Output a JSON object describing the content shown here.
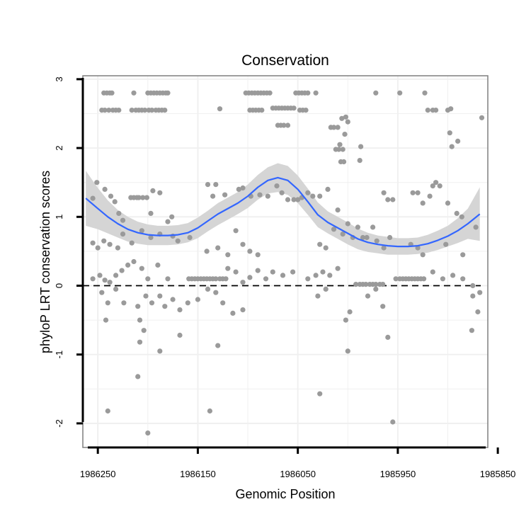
{
  "chart_data": {
    "type": "scatter",
    "title": "Conservation",
    "xlabel": "Genomic Position",
    "ylabel": "phyloP LRT conservation scores",
    "xlim": [
      1986265,
      1985860
    ],
    "ylim": [
      -2.35,
      3.05
    ],
    "x_reversed": true,
    "grid": true,
    "x_ticks": [
      1986250,
      1986150,
      1986050,
      1985950,
      1985850
    ],
    "x_tick_labels": [
      "1986250",
      "1986150",
      "1986050",
      "1985950",
      "1985850"
    ],
    "y_ticks": [
      -2,
      -1,
      0,
      1,
      2,
      3
    ],
    "y_tick_labels": [
      "-2",
      "-1",
      "0",
      "1",
      "2",
      "3"
    ],
    "reference_line": {
      "y": 0,
      "style": "dashed"
    },
    "colors": {
      "points": "#9a9a9a",
      "smooth": "#3366ff",
      "band": "#d5d5d5",
      "frame": "#7f7f7f",
      "grid": "#f0f0f0"
    },
    "points": [
      [
        1986244,
        2.8
      ],
      [
        1986241,
        2.8
      ],
      [
        1986238,
        2.8
      ],
      [
        1986236,
        2.8
      ],
      [
        1986246,
        2.55
      ],
      [
        1986243,
        2.55
      ],
      [
        1986239,
        2.55
      ],
      [
        1986235,
        2.55
      ],
      [
        1986232,
        2.55
      ],
      [
        1986229,
        2.55
      ],
      [
        1986214,
        2.8
      ],
      [
        1986200,
        2.8
      ],
      [
        1986197,
        2.8
      ],
      [
        1986194,
        2.8
      ],
      [
        1986191,
        2.8
      ],
      [
        1986188,
        2.8
      ],
      [
        1986185,
        2.8
      ],
      [
        1986182,
        2.8
      ],
      [
        1986180,
        2.8
      ],
      [
        1986216,
        2.55
      ],
      [
        1986212,
        2.55
      ],
      [
        1986209,
        2.55
      ],
      [
        1986206,
        2.55
      ],
      [
        1986203,
        2.55
      ],
      [
        1986199,
        2.55
      ],
      [
        1986196,
        2.55
      ],
      [
        1986192,
        2.55
      ],
      [
        1986189,
        2.55
      ],
      [
        1986186,
        2.55
      ],
      [
        1986183,
        2.55
      ],
      [
        1986102,
        2.8
      ],
      [
        1986099,
        2.8
      ],
      [
        1986096,
        2.8
      ],
      [
        1986093,
        2.8
      ],
      [
        1986090,
        2.8
      ],
      [
        1986087,
        2.8
      ],
      [
        1986084,
        2.8
      ],
      [
        1986081,
        2.8
      ],
      [
        1986078,
        2.8
      ],
      [
        1986098,
        2.55
      ],
      [
        1986095,
        2.55
      ],
      [
        1986092,
        2.55
      ],
      [
        1986089,
        2.55
      ],
      [
        1986086,
        2.55
      ],
      [
        1986075,
        2.58
      ],
      [
        1986072,
        2.58
      ],
      [
        1986069,
        2.58
      ],
      [
        1986066,
        2.58
      ],
      [
        1986063,
        2.58
      ],
      [
        1986060,
        2.58
      ],
      [
        1986057,
        2.58
      ],
      [
        1986054,
        2.58
      ],
      [
        1986070,
        2.33
      ],
      [
        1986067,
        2.33
      ],
      [
        1986064,
        2.33
      ],
      [
        1986060,
        2.33
      ],
      [
        1986052,
        2.8
      ],
      [
        1986049,
        2.8
      ],
      [
        1986046,
        2.8
      ],
      [
        1986043,
        2.8
      ],
      [
        1986040,
        2.8
      ],
      [
        1986032,
        2.8
      ],
      [
        1986048,
        2.55
      ],
      [
        1986045,
        2.55
      ],
      [
        1986042,
        2.55
      ],
      [
        1986128,
        2.57
      ],
      [
        1986017,
        2.3
      ],
      [
        1986014,
        2.3
      ],
      [
        1986010,
        2.3
      ],
      [
        1986006,
        2.43
      ],
      [
        1986002,
        2.45
      ],
      [
        1986000,
        2.38
      ],
      [
        1986003,
        2.2
      ],
      [
        1986008,
        2.05
      ],
      [
        1986012,
        1.98
      ],
      [
        1986009,
        1.98
      ],
      [
        1986005,
        1.98
      ],
      [
        1986007,
        1.8
      ],
      [
        1986004,
        1.8
      ],
      [
        1985972,
        2.8
      ],
      [
        1985948,
        2.8
      ],
      [
        1985923,
        2.8
      ],
      [
        1985915,
        2.55
      ],
      [
        1985912,
        2.55
      ],
      [
        1985920,
        2.55
      ],
      [
        1985900,
        2.55
      ],
      [
        1985897,
        2.57
      ],
      [
        1985898,
        2.22
      ],
      [
        1985896,
        2.02
      ],
      [
        1985890,
        2.1
      ],
      [
        1985866,
        2.44
      ],
      [
        1985987,
        2.02
      ],
      [
        1985988,
        1.82
      ],
      [
        1986255,
        1.27
      ],
      [
        1986251,
        1.5
      ],
      [
        1986243,
        1.4
      ],
      [
        1986237,
        1.3
      ],
      [
        1986233,
        1.22
      ],
      [
        1986229,
        1.05
      ],
      [
        1986225,
        0.95
      ],
      [
        1986217,
        1.28
      ],
      [
        1986214,
        1.28
      ],
      [
        1986211,
        1.28
      ],
      [
        1986209,
        1.28
      ],
      [
        1986205,
        1.28
      ],
      [
        1986201,
        1.28
      ],
      [
        1986197,
        1.05
      ],
      [
        1986195,
        1.38
      ],
      [
        1986188,
        1.35
      ],
      [
        1986180,
        0.93
      ],
      [
        1986176,
        1.0
      ],
      [
        1986140,
        1.47
      ],
      [
        1986135,
        1.3
      ],
      [
        1986132,
        1.47
      ],
      [
        1986123,
        1.32
      ],
      [
        1986109,
        1.4
      ],
      [
        1986105,
        1.42
      ],
      [
        1986097,
        1.3
      ],
      [
        1986088,
        1.32
      ],
      [
        1986080,
        1.3
      ],
      [
        1986071,
        1.45
      ],
      [
        1986066,
        1.35
      ],
      [
        1986060,
        1.25
      ],
      [
        1986054,
        1.25
      ],
      [
        1986050,
        1.25
      ],
      [
        1986046,
        1.28
      ],
      [
        1986040,
        1.35
      ],
      [
        1986035,
        1.3
      ],
      [
        1986028,
        1.3
      ],
      [
        1986020,
        1.4
      ],
      [
        1986010,
        1.1
      ],
      [
        1986000,
        0.9
      ],
      [
        1985990,
        0.85
      ],
      [
        1985981,
        0.7
      ],
      [
        1985971,
        0.65
      ],
      [
        1985964,
        1.35
      ],
      [
        1985960,
        1.25
      ],
      [
        1985955,
        1.25
      ],
      [
        1985935,
        1.35
      ],
      [
        1985930,
        1.35
      ],
      [
        1985925,
        1.2
      ],
      [
        1985918,
        1.3
      ],
      [
        1985915,
        1.45
      ],
      [
        1985912,
        1.5
      ],
      [
        1985908,
        1.45
      ],
      [
        1985900,
        1.2
      ],
      [
        1985891,
        1.05
      ],
      [
        1985886,
        1.0
      ],
      [
        1985872,
        0.85
      ],
      [
        1986255,
        0.62
      ],
      [
        1986250,
        0.55
      ],
      [
        1986244,
        0.65
      ],
      [
        1986238,
        0.6
      ],
      [
        1986230,
        0.55
      ],
      [
        1986225,
        0.75
      ],
      [
        1986216,
        0.62
      ],
      [
        1986206,
        0.8
      ],
      [
        1986197,
        0.7
      ],
      [
        1986188,
        0.75
      ],
      [
        1986175,
        0.72
      ],
      [
        1986170,
        0.65
      ],
      [
        1986158,
        0.7
      ],
      [
        1986141,
        0.5
      ],
      [
        1986130,
        0.55
      ],
      [
        1986120,
        0.45
      ],
      [
        1986112,
        0.8
      ],
      [
        1986105,
        0.6
      ],
      [
        1986098,
        0.5
      ],
      [
        1986090,
        0.45
      ],
      [
        1986028,
        0.6
      ],
      [
        1986022,
        0.55
      ],
      [
        1986014,
        0.82
      ],
      [
        1986005,
        0.75
      ],
      [
        1985995,
        0.7
      ],
      [
        1985985,
        0.7
      ],
      [
        1985975,
        0.85
      ],
      [
        1985964,
        0.55
      ],
      [
        1985958,
        0.7
      ],
      [
        1985937,
        0.6
      ],
      [
        1985930,
        0.55
      ],
      [
        1985925,
        0.45
      ],
      [
        1985902,
        0.6
      ],
      [
        1985885,
        0.45
      ],
      [
        1986255,
        0.1
      ],
      [
        1986248,
        0.15
      ],
      [
        1986243,
        0.08
      ],
      [
        1986238,
        0.05
      ],
      [
        1986232,
        0.15
      ],
      [
        1986226,
        0.22
      ],
      [
        1986220,
        0.3
      ],
      [
        1986214,
        0.35
      ],
      [
        1986206,
        0.25
      ],
      [
        1986200,
        0.1
      ],
      [
        1986190,
        0.3
      ],
      [
        1986180,
        0.1
      ],
      [
        1986159,
        0.1
      ],
      [
        1986156,
        0.1
      ],
      [
        1986153,
        0.1
      ],
      [
        1986150,
        0.1
      ],
      [
        1986147,
        0.1
      ],
      [
        1986144,
        0.1
      ],
      [
        1986141,
        0.1
      ],
      [
        1986138,
        0.1
      ],
      [
        1986135,
        0.1
      ],
      [
        1986132,
        0.1
      ],
      [
        1986128,
        0.1
      ],
      [
        1986125,
        0.1
      ],
      [
        1986122,
        0.1
      ],
      [
        1986120,
        0.25
      ],
      [
        1986112,
        0.2
      ],
      [
        1986105,
        0.05
      ],
      [
        1986098,
        0.12
      ],
      [
        1986090,
        0.22
      ],
      [
        1986082,
        0.1
      ],
      [
        1986075,
        0.2
      ],
      [
        1986065,
        0.15
      ],
      [
        1986055,
        0.2
      ],
      [
        1986040,
        0.1
      ],
      [
        1986032,
        0.15
      ],
      [
        1986025,
        0.2
      ],
      [
        1986018,
        0.15
      ],
      [
        1986010,
        0.25
      ],
      [
        1985992,
        0.02
      ],
      [
        1985988,
        0.02
      ],
      [
        1985985,
        0.02
      ],
      [
        1985982,
        0.02
      ],
      [
        1985978,
        0.02
      ],
      [
        1985975,
        0.02
      ],
      [
        1985972,
        0.02
      ],
      [
        1985968,
        0.02
      ],
      [
        1985965,
        0.02
      ],
      [
        1985952,
        0.1
      ],
      [
        1985948,
        0.1
      ],
      [
        1985945,
        0.1
      ],
      [
        1985942,
        0.1
      ],
      [
        1985939,
        0.1
      ],
      [
        1985936,
        0.1
      ],
      [
        1985933,
        0.1
      ],
      [
        1985930,
        0.1
      ],
      [
        1985927,
        0.1
      ],
      [
        1985924,
        0.1
      ],
      [
        1985915,
        0.2
      ],
      [
        1985905,
        0.1
      ],
      [
        1985895,
        0.15
      ],
      [
        1985885,
        0.1
      ],
      [
        1985875,
        0.0
      ],
      [
        1986246,
        -0.1
      ],
      [
        1986240,
        -0.25
      ],
      [
        1986232,
        -0.05
      ],
      [
        1986224,
        -0.25
      ],
      [
        1986210,
        -0.3
      ],
      [
        1986202,
        -0.15
      ],
      [
        1986196,
        -0.25
      ],
      [
        1986188,
        -0.15
      ],
      [
        1986183,
        -0.3
      ],
      [
        1986175,
        -0.2
      ],
      [
        1986168,
        -0.35
      ],
      [
        1986160,
        -0.25
      ],
      [
        1986150,
        -0.2
      ],
      [
        1986140,
        -0.05
      ],
      [
        1986132,
        -0.1
      ],
      [
        1986125,
        -0.25
      ],
      [
        1986115,
        -0.4
      ],
      [
        1986105,
        -0.35
      ],
      [
        1986030,
        -0.15
      ],
      [
        1986022,
        -0.05
      ],
      [
        1985998,
        -0.38
      ],
      [
        1985980,
        -0.15
      ],
      [
        1985972,
        -0.05
      ],
      [
        1985965,
        -0.3
      ],
      [
        1985875,
        -0.15
      ],
      [
        1985870,
        -0.38
      ],
      [
        1985868,
        -0.1
      ],
      [
        1986242,
        -0.5
      ],
      [
        1986208,
        -0.5
      ],
      [
        1986204,
        -0.65
      ],
      [
        1986188,
        -0.95
      ],
      [
        1986168,
        -0.72
      ],
      [
        1986208,
        -0.82
      ],
      [
        1986130,
        -0.87
      ],
      [
        1986002,
        -0.5
      ],
      [
        1986000,
        -0.95
      ],
      [
        1985960,
        -0.75
      ],
      [
        1985876,
        -0.65
      ],
      [
        1986210,
        -1.32
      ],
      [
        1986028,
        -1.57
      ],
      [
        1986240,
        -1.82
      ],
      [
        1986138,
        -1.82
      ],
      [
        1986200,
        -2.14
      ],
      [
        1985955,
        -1.98
      ]
    ],
    "smooth_line": {
      "x": [
        1986262,
        1986250,
        1986240,
        1986230,
        1986220,
        1986210,
        1986200,
        1986190,
        1986180,
        1986170,
        1986160,
        1986150,
        1986140,
        1986130,
        1986120,
        1986110,
        1986100,
        1986090,
        1986080,
        1986070,
        1986060,
        1986050,
        1986040,
        1986030,
        1986020,
        1986010,
        1986000,
        1985990,
        1985980,
        1985970,
        1985960,
        1985950,
        1985940,
        1985930,
        1985920,
        1985910,
        1985900,
        1985890,
        1985880,
        1985868
      ],
      "y": [
        1.27,
        1.12,
        1.0,
        0.9,
        0.82,
        0.77,
        0.74,
        0.73,
        0.73,
        0.74,
        0.77,
        0.84,
        0.94,
        1.04,
        1.12,
        1.2,
        1.3,
        1.43,
        1.53,
        1.57,
        1.53,
        1.4,
        1.22,
        1.03,
        0.92,
        0.84,
        0.76,
        0.68,
        0.63,
        0.6,
        0.58,
        0.57,
        0.57,
        0.58,
        0.61,
        0.66,
        0.72,
        0.8,
        0.9,
        1.04
      ]
    },
    "confidence_band": {
      "upper": [
        1.67,
        1.42,
        1.24,
        1.1,
        1.0,
        0.93,
        0.89,
        0.87,
        0.87,
        0.88,
        0.91,
        0.99,
        1.09,
        1.2,
        1.28,
        1.36,
        1.47,
        1.61,
        1.72,
        1.78,
        1.74,
        1.6,
        1.41,
        1.21,
        1.08,
        1.0,
        0.92,
        0.83,
        0.77,
        0.73,
        0.71,
        0.69,
        0.69,
        0.7,
        0.74,
        0.8,
        0.87,
        0.98,
        1.12,
        1.43
      ],
      "lower": [
        0.87,
        0.82,
        0.76,
        0.7,
        0.64,
        0.61,
        0.59,
        0.59,
        0.59,
        0.6,
        0.63,
        0.69,
        0.79,
        0.88,
        0.96,
        1.04,
        1.13,
        1.25,
        1.34,
        1.36,
        1.32,
        1.2,
        1.03,
        0.85,
        0.76,
        0.68,
        0.6,
        0.53,
        0.49,
        0.47,
        0.45,
        0.45,
        0.45,
        0.46,
        0.48,
        0.52,
        0.57,
        0.62,
        0.68,
        0.65
      ]
    }
  }
}
